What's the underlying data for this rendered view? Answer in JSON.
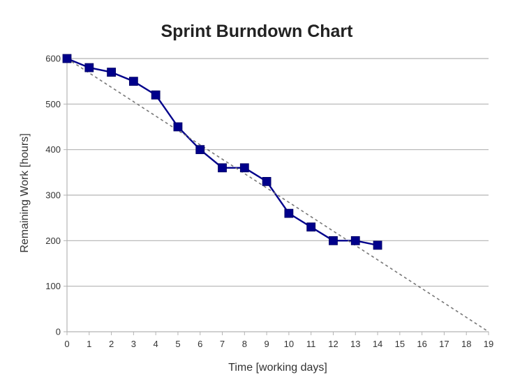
{
  "chart_data": {
    "type": "line",
    "title": "Sprint Burndown Chart",
    "xlabel": "Time [working days]",
    "ylabel": "Remaining Work [hours]",
    "xlim": [
      0,
      19
    ],
    "ylim": [
      0,
      600
    ],
    "x_ticks": [
      0,
      1,
      2,
      3,
      4,
      5,
      6,
      7,
      8,
      9,
      10,
      11,
      12,
      13,
      14,
      15,
      16,
      17,
      18,
      19
    ],
    "y_ticks": [
      0,
      100,
      200,
      300,
      400,
      500,
      600
    ],
    "grid": true,
    "legend": "none",
    "series": [
      {
        "style": "solid-line-square-markers",
        "color": "#00008B",
        "x": [
          0,
          1,
          2,
          3,
          4,
          5,
          6,
          7,
          8,
          9,
          10,
          11,
          12,
          13,
          14
        ],
        "y": [
          600,
          580,
          570,
          550,
          520,
          450,
          400,
          360,
          360,
          330,
          260,
          230,
          200,
          200,
          190
        ]
      },
      {
        "style": "dashed-line",
        "color": "#777777",
        "x": [
          0,
          19
        ],
        "y": [
          600,
          0
        ]
      }
    ]
  }
}
